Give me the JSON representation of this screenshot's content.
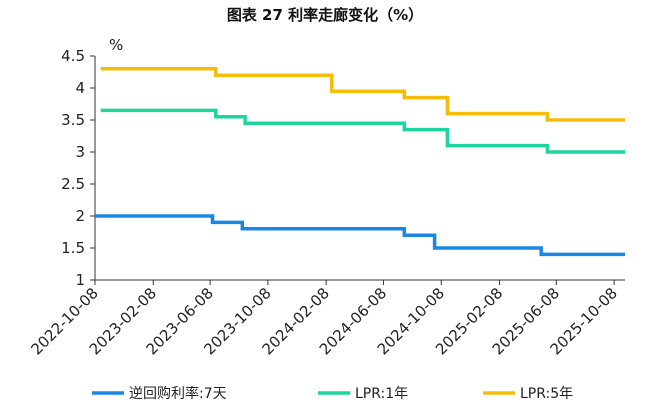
{
  "chart_data": {
    "type": "line",
    "title": "图表 27 利率走廊变化（%）",
    "ylabel": "%",
    "xlabel": "",
    "ylim": [
      1,
      4.5
    ],
    "yticks": [
      "4.5",
      "4",
      "3.5",
      "3",
      "2.5",
      "2",
      "1.5",
      "1"
    ],
    "xlim": [
      "2022-10-08",
      "2025-10-31"
    ],
    "xticks": [
      "2022-10-08",
      "2023-02-08",
      "2023-06-08",
      "2023-10-08",
      "2024-02-08",
      "2024-06-08",
      "2024-10-08",
      "2025-02-08",
      "2025-06-08",
      "2025-10-08"
    ],
    "legend_position": "bottom",
    "series": [
      {
        "name": "逆回购利率:7天",
        "color": "#1a87e6",
        "points": [
          [
            "2022-10-08",
            2.0
          ],
          [
            "2023-06-13",
            2.0
          ],
          [
            "2023-06-13",
            1.9
          ],
          [
            "2023-08-15",
            1.9
          ],
          [
            "2023-08-15",
            1.8
          ],
          [
            "2024-07-22",
            1.8
          ],
          [
            "2024-07-22",
            1.7
          ],
          [
            "2024-09-24",
            1.7
          ],
          [
            "2024-09-24",
            1.5
          ],
          [
            "2025-05-07",
            1.5
          ],
          [
            "2025-05-07",
            1.4
          ],
          [
            "2025-10-31",
            1.4
          ]
        ]
      },
      {
        "name": "LPR:1年",
        "color": "#1ed49f",
        "points": [
          [
            "2022-10-20",
            3.65
          ],
          [
            "2023-06-20",
            3.65
          ],
          [
            "2023-06-20",
            3.55
          ],
          [
            "2023-08-21",
            3.55
          ],
          [
            "2023-08-21",
            3.45
          ],
          [
            "2024-07-22",
            3.45
          ],
          [
            "2024-07-22",
            3.35
          ],
          [
            "2024-10-21",
            3.35
          ],
          [
            "2024-10-21",
            3.1
          ],
          [
            "2025-05-20",
            3.1
          ],
          [
            "2025-05-20",
            3.0
          ],
          [
            "2025-10-31",
            3.0
          ]
        ]
      },
      {
        "name": "LPR:5年",
        "color": "#f5bd0a",
        "points": [
          [
            "2022-10-20",
            4.3
          ],
          [
            "2023-06-20",
            4.3
          ],
          [
            "2023-06-20",
            4.2
          ],
          [
            "2024-02-20",
            4.2
          ],
          [
            "2024-02-20",
            3.95
          ],
          [
            "2024-07-22",
            3.95
          ],
          [
            "2024-07-22",
            3.85
          ],
          [
            "2024-10-21",
            3.85
          ],
          [
            "2024-10-21",
            3.6
          ],
          [
            "2025-05-20",
            3.6
          ],
          [
            "2025-05-20",
            3.5
          ],
          [
            "2025-10-31",
            3.5
          ]
        ]
      }
    ]
  }
}
